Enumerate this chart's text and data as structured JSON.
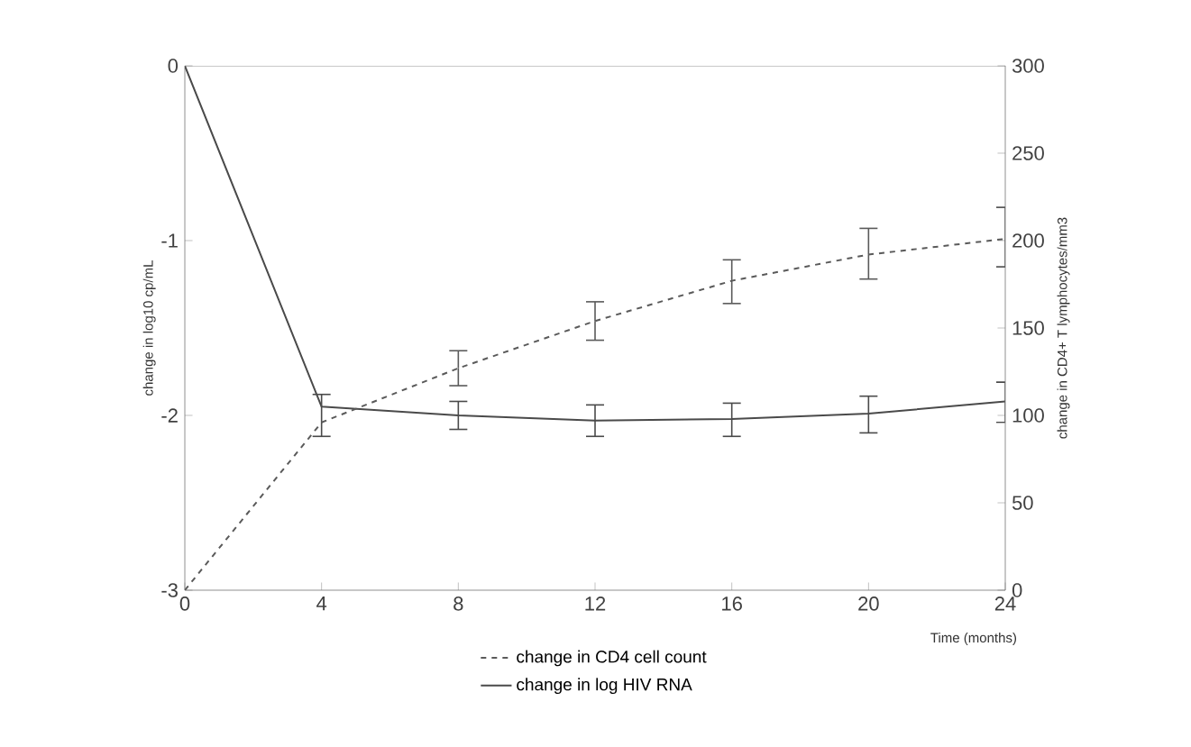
{
  "chart_data": {
    "type": "line",
    "xlabel": "Time (months)",
    "ylabel": "change in log10 cp/mL",
    "y2label": "change in CD4+ T lymphocytes/mm3",
    "x": [
      0,
      4,
      8,
      12,
      16,
      20,
      24
    ],
    "xlim": [
      0,
      24
    ],
    "xticks": [
      0,
      4,
      8,
      12,
      16,
      20,
      24
    ],
    "ylim": [
      -3,
      0
    ],
    "yticks": [
      -3,
      -2,
      -1,
      0
    ],
    "y2lim": [
      0,
      300
    ],
    "y2ticks": [
      0,
      50,
      100,
      150,
      200,
      250,
      300
    ],
    "series": [
      {
        "name": "change in CD4 cell count",
        "color": "#5a5a5a",
        "axis": "y2",
        "line_style": "dashed",
        "values": [
          0,
          96,
          127,
          154,
          177,
          192,
          201
        ],
        "errors": [
          null,
          null,
          [
            117,
            137
          ],
          [
            143,
            165
          ],
          [
            164,
            189
          ],
          [
            178,
            207
          ],
          [
            185,
            219
          ]
        ]
      },
      {
        "name": "change in log HIV RNA",
        "color": "#4a4a4a",
        "axis": "y",
        "line_style": "solid",
        "values": [
          0,
          -1.95,
          -2.0,
          -2.03,
          -2.02,
          -1.99,
          -1.92
        ],
        "errors": [
          null,
          [
            -2.12,
            -1.88
          ],
          [
            -2.08,
            -1.92
          ],
          [
            -2.12,
            -1.94
          ],
          [
            -2.12,
            -1.93
          ],
          [
            -2.1,
            -1.89
          ],
          [
            -2.04,
            -1.81
          ]
        ]
      }
    ],
    "grid": false,
    "legend": "bottom",
    "marker": "none"
  }
}
